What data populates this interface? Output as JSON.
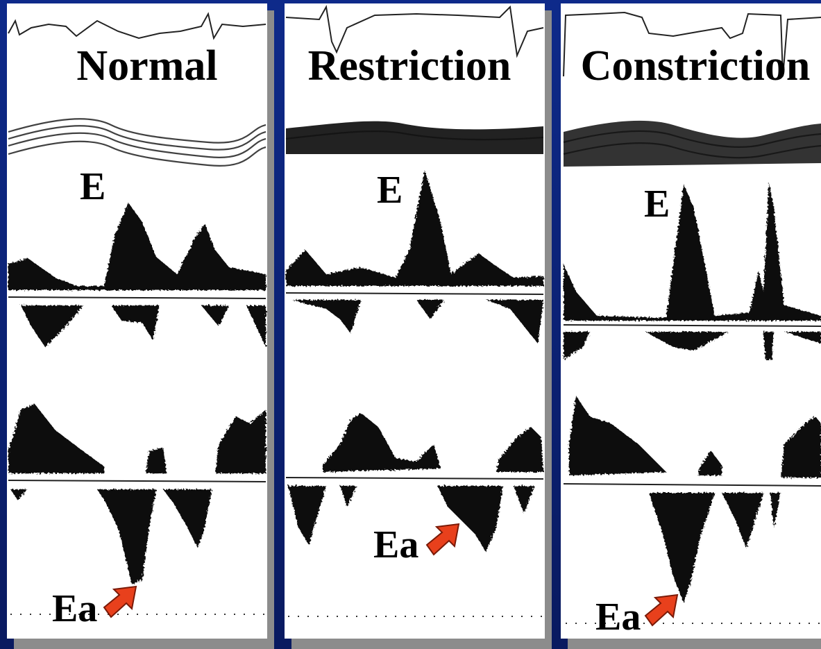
{
  "panels": [
    {
      "title": "Normal",
      "e_label": "E",
      "ea_label": "Ea"
    },
    {
      "title": "Restriction",
      "e_label": "E",
      "ea_label": "Ea"
    },
    {
      "title": "Constriction",
      "e_label": "E",
      "ea_label": "Ea"
    }
  ]
}
